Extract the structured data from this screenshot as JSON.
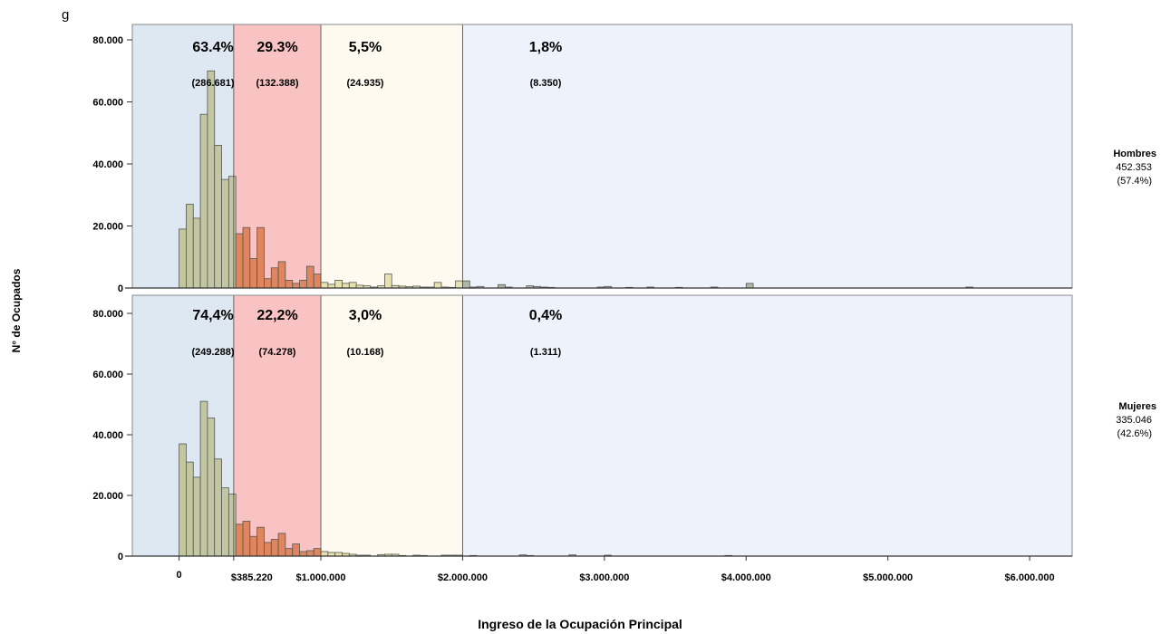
{
  "chart_data": {
    "type": "bar",
    "title_fragment": "g",
    "xlabel": "Ingreso de la Ocupación Principal",
    "ylabel": "N° de Ocupados",
    "xlim": [
      -330000,
      6300000
    ],
    "ylim": [
      0,
      85000
    ],
    "bin_width": 50000,
    "x_ticks": [
      {
        "value": 0,
        "label": "0"
      },
      {
        "value": 385220,
        "label": "$385.220"
      },
      {
        "value": 1000000,
        "label": "$1.000.000"
      },
      {
        "value": 2000000,
        "label": "$2.000.000"
      },
      {
        "value": 3000000,
        "label": "$3.000.000"
      },
      {
        "value": 4000000,
        "label": "$4.000.000"
      },
      {
        "value": 5000000,
        "label": "$5.000.000"
      },
      {
        "value": 6000000,
        "label": "$6.000.000"
      }
    ],
    "y_ticks": [
      {
        "value": 0,
        "label": "0"
      },
      {
        "value": 20000,
        "label": "20.000"
      },
      {
        "value": 40000,
        "label": "40.000"
      },
      {
        "value": 60000,
        "label": "60.000"
      },
      {
        "value": 80000,
        "label": "80.000"
      }
    ],
    "bands": [
      {
        "from": -330000,
        "to": 385220,
        "color": "#dde8f2"
      },
      {
        "from": 385220,
        "to": 1000000,
        "color": "#f9c3c3"
      },
      {
        "from": 1000000,
        "to": 2000000,
        "color": "#fefaef"
      },
      {
        "from": 2000000,
        "to": 6300000,
        "color": "#eef2fb"
      }
    ],
    "bar_colors": {
      "low": "#c2c7a1",
      "mid": "#e0865e",
      "high": "#e6e2b0",
      "top": "#b0b6a6"
    },
    "panels": [
      {
        "name": "Hombres",
        "total": "452.353",
        "share": "(57.4%)",
        "band_labels": [
          {
            "pct": "63.4%",
            "count": "(286.681)"
          },
          {
            "pct": "29.3%",
            "count": "(132.388)"
          },
          {
            "pct": "5,5%",
            "count": "(24.935)"
          },
          {
            "pct": "1,8%",
            "count": "(8.350)"
          }
        ],
        "bars": [
          {
            "x": 0,
            "y": 19000
          },
          {
            "x": 50000,
            "y": 27000
          },
          {
            "x": 100000,
            "y": 22500
          },
          {
            "x": 150000,
            "y": 56000
          },
          {
            "x": 200000,
            "y": 70000
          },
          {
            "x": 250000,
            "y": 46000
          },
          {
            "x": 300000,
            "y": 35000
          },
          {
            "x": 350000,
            "y": 36000
          },
          {
            "x": 400000,
            "y": 17500
          },
          {
            "x": 450000,
            "y": 19500
          },
          {
            "x": 500000,
            "y": 9500
          },
          {
            "x": 550000,
            "y": 19500
          },
          {
            "x": 600000,
            "y": 3000
          },
          {
            "x": 650000,
            "y": 6500
          },
          {
            "x": 700000,
            "y": 8500
          },
          {
            "x": 750000,
            "y": 2500
          },
          {
            "x": 800000,
            "y": 1500
          },
          {
            "x": 850000,
            "y": 2500
          },
          {
            "x": 900000,
            "y": 7000
          },
          {
            "x": 950000,
            "y": 4500
          },
          {
            "x": 1000000,
            "y": 1800
          },
          {
            "x": 1050000,
            "y": 1200
          },
          {
            "x": 1100000,
            "y": 2500
          },
          {
            "x": 1150000,
            "y": 1500
          },
          {
            "x": 1200000,
            "y": 1800
          },
          {
            "x": 1250000,
            "y": 900
          },
          {
            "x": 1300000,
            "y": 700
          },
          {
            "x": 1350000,
            "y": 300
          },
          {
            "x": 1400000,
            "y": 700
          },
          {
            "x": 1450000,
            "y": 4500
          },
          {
            "x": 1500000,
            "y": 800
          },
          {
            "x": 1550000,
            "y": 600
          },
          {
            "x": 1600000,
            "y": 400
          },
          {
            "x": 1650000,
            "y": 600
          },
          {
            "x": 1700000,
            "y": 300
          },
          {
            "x": 1750000,
            "y": 300
          },
          {
            "x": 1800000,
            "y": 1800
          },
          {
            "x": 1850000,
            "y": 300
          },
          {
            "x": 1900000,
            "y": 200
          },
          {
            "x": 1950000,
            "y": 2300
          },
          {
            "x": 2000000,
            "y": 2300
          },
          {
            "x": 2050000,
            "y": 300
          },
          {
            "x": 2100000,
            "y": 500
          },
          {
            "x": 2250000,
            "y": 1100
          },
          {
            "x": 2300000,
            "y": 300
          },
          {
            "x": 2450000,
            "y": 700
          },
          {
            "x": 2500000,
            "y": 500
          },
          {
            "x": 2550000,
            "y": 300
          },
          {
            "x": 2600000,
            "y": 200
          },
          {
            "x": 2950000,
            "y": 300
          },
          {
            "x": 3000000,
            "y": 500
          },
          {
            "x": 3150000,
            "y": 200
          },
          {
            "x": 3300000,
            "y": 300
          },
          {
            "x": 3500000,
            "y": 200
          },
          {
            "x": 3750000,
            "y": 300
          },
          {
            "x": 4000000,
            "y": 1500
          },
          {
            "x": 5550000,
            "y": 300
          }
        ]
      },
      {
        "name": "Mujeres",
        "total": "335.046",
        "share": "(42.6%)",
        "band_labels": [
          {
            "pct": "74,4%",
            "count": "(249.288)"
          },
          {
            "pct": "22,2%",
            "count": "(74.278)"
          },
          {
            "pct": "3,0%",
            "count": "(10.168)"
          },
          {
            "pct": "0,4%",
            "count": "(1.311)"
          }
        ],
        "bars": [
          {
            "x": 0,
            "y": 37000
          },
          {
            "x": 50000,
            "y": 31000
          },
          {
            "x": 100000,
            "y": 26000
          },
          {
            "x": 150000,
            "y": 51000
          },
          {
            "x": 200000,
            "y": 45500
          },
          {
            "x": 250000,
            "y": 32000
          },
          {
            "x": 300000,
            "y": 22500
          },
          {
            "x": 350000,
            "y": 20500
          },
          {
            "x": 400000,
            "y": 10500
          },
          {
            "x": 450000,
            "y": 11500
          },
          {
            "x": 500000,
            "y": 6500
          },
          {
            "x": 550000,
            "y": 9500
          },
          {
            "x": 600000,
            "y": 4500
          },
          {
            "x": 650000,
            "y": 5500
          },
          {
            "x": 700000,
            "y": 7500
          },
          {
            "x": 750000,
            "y": 2500
          },
          {
            "x": 800000,
            "y": 4000
          },
          {
            "x": 850000,
            "y": 1500
          },
          {
            "x": 900000,
            "y": 1800
          },
          {
            "x": 950000,
            "y": 2500
          },
          {
            "x": 1000000,
            "y": 1500
          },
          {
            "x": 1050000,
            "y": 1200
          },
          {
            "x": 1100000,
            "y": 1200
          },
          {
            "x": 1150000,
            "y": 900
          },
          {
            "x": 1200000,
            "y": 600
          },
          {
            "x": 1250000,
            "y": 300
          },
          {
            "x": 1300000,
            "y": 300
          },
          {
            "x": 1400000,
            "y": 500
          },
          {
            "x": 1450000,
            "y": 600
          },
          {
            "x": 1500000,
            "y": 600
          },
          {
            "x": 1550000,
            "y": 200
          },
          {
            "x": 1650000,
            "y": 300
          },
          {
            "x": 1700000,
            "y": 200
          },
          {
            "x": 1850000,
            "y": 300
          },
          {
            "x": 1900000,
            "y": 300
          },
          {
            "x": 1950000,
            "y": 300
          },
          {
            "x": 2050000,
            "y": 200
          },
          {
            "x": 2400000,
            "y": 400
          },
          {
            "x": 2450000,
            "y": 200
          },
          {
            "x": 2750000,
            "y": 400
          },
          {
            "x": 3000000,
            "y": 300
          },
          {
            "x": 3850000,
            "y": 200
          }
        ]
      }
    ]
  }
}
